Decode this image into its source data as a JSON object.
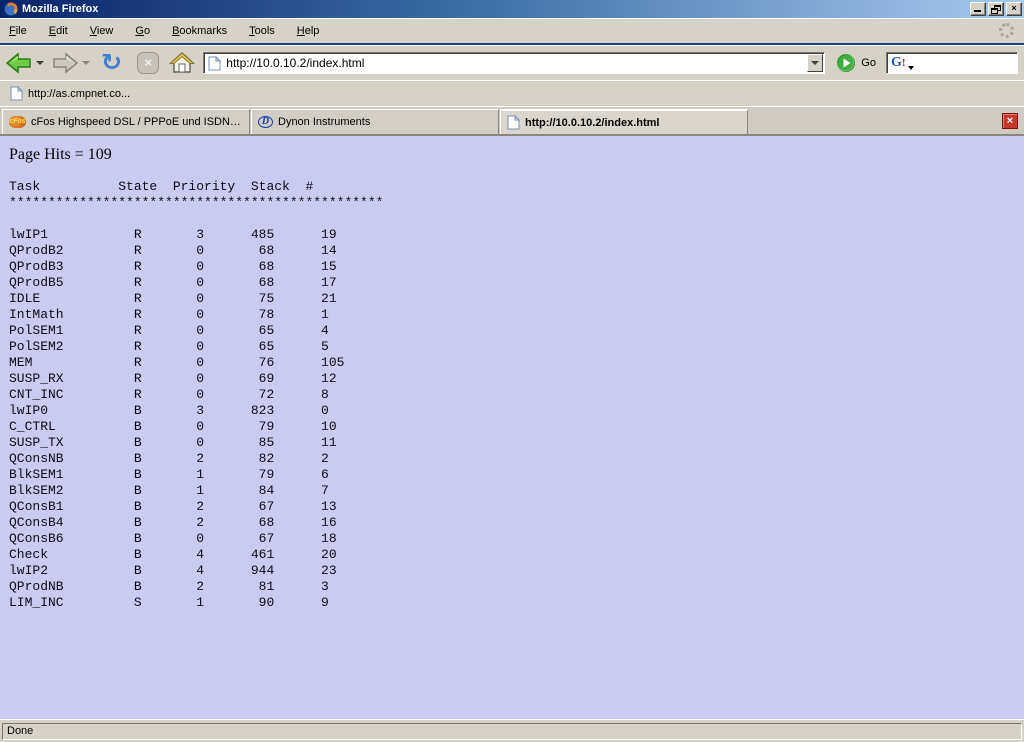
{
  "window": {
    "title": "Mozilla Firefox"
  },
  "window_controls": {
    "minimize": "_",
    "restore": "❐",
    "close": "×"
  },
  "menu": {
    "items": [
      "File",
      "Edit",
      "View",
      "Go",
      "Bookmarks",
      "Tools",
      "Help"
    ]
  },
  "toolbar": {
    "url_value": "http://10.0.10.2/index.html",
    "go_label": "Go",
    "search_value": ""
  },
  "icons": {
    "back": "back-arrow-icon",
    "forward": "forward-arrow-icon",
    "reload_glyph": "↻",
    "stop_glyph": "×",
    "home": "home-icon",
    "google_g": "G",
    "google_mark": "!",
    "throbber": "firefox-throbber-icon",
    "close_glyph": "×"
  },
  "bookmarks": {
    "items": [
      {
        "label": "http://as.cmpnet.co..."
      }
    ]
  },
  "tabs": [
    {
      "label": "cFos Highspeed DSL / PPPoE und ISDN CAP...",
      "icon": "cfos",
      "icon_text": "cFos",
      "active": false
    },
    {
      "label": "Dynon Instruments",
      "icon": "dynon",
      "icon_text": "D",
      "active": false
    },
    {
      "label": "http://10.0.10.2/index.html",
      "icon": "page",
      "icon_text": "",
      "active": true
    }
  ],
  "page": {
    "hits_line": "Page Hits = 109",
    "table": {
      "headers": [
        "Task",
        "State",
        "Priority",
        "Stack",
        "#"
      ],
      "separator": "************************************************",
      "rows": [
        [
          "lwIP1",
          "R",
          3,
          485,
          19
        ],
        [
          "QProdB2",
          "R",
          0,
          68,
          14
        ],
        [
          "QProdB3",
          "R",
          0,
          68,
          15
        ],
        [
          "QProdB5",
          "R",
          0,
          68,
          17
        ],
        [
          "IDLE",
          "R",
          0,
          75,
          21
        ],
        [
          "IntMath",
          "R",
          0,
          78,
          1
        ],
        [
          "PolSEM1",
          "R",
          0,
          65,
          4
        ],
        [
          "PolSEM2",
          "R",
          0,
          65,
          5
        ],
        [
          "MEM",
          "R",
          0,
          76,
          105
        ],
        [
          "SUSP_RX",
          "R",
          0,
          69,
          12
        ],
        [
          "CNT_INC",
          "R",
          0,
          72,
          8
        ],
        [
          "lwIP0",
          "B",
          3,
          823,
          0
        ],
        [
          "C_CTRL",
          "B",
          0,
          79,
          10
        ],
        [
          "SUSP_TX",
          "B",
          0,
          85,
          11
        ],
        [
          "QConsNB",
          "B",
          2,
          82,
          2
        ],
        [
          "BlkSEM1",
          "B",
          1,
          79,
          6
        ],
        [
          "BlkSEM2",
          "B",
          1,
          84,
          7
        ],
        [
          "QConsB1",
          "B",
          2,
          67,
          13
        ],
        [
          "QConsB4",
          "B",
          2,
          68,
          16
        ],
        [
          "QConsB6",
          "B",
          0,
          67,
          18
        ],
        [
          "Check",
          "B",
          4,
          461,
          20
        ],
        [
          "lwIP2",
          "B",
          4,
          944,
          23
        ],
        [
          "QProdNB",
          "B",
          2,
          81,
          3
        ],
        [
          "LIM_INC",
          "S",
          1,
          90,
          9
        ]
      ]
    }
  },
  "statusbar": {
    "text": "Done"
  },
  "colors": {
    "content_bg": "#cbcbf2",
    "chrome": "#d6d2c7",
    "title_gradient_start": "#0a246a",
    "title_gradient_end": "#a6caf0",
    "tab_close_red": "#c5392e"
  }
}
